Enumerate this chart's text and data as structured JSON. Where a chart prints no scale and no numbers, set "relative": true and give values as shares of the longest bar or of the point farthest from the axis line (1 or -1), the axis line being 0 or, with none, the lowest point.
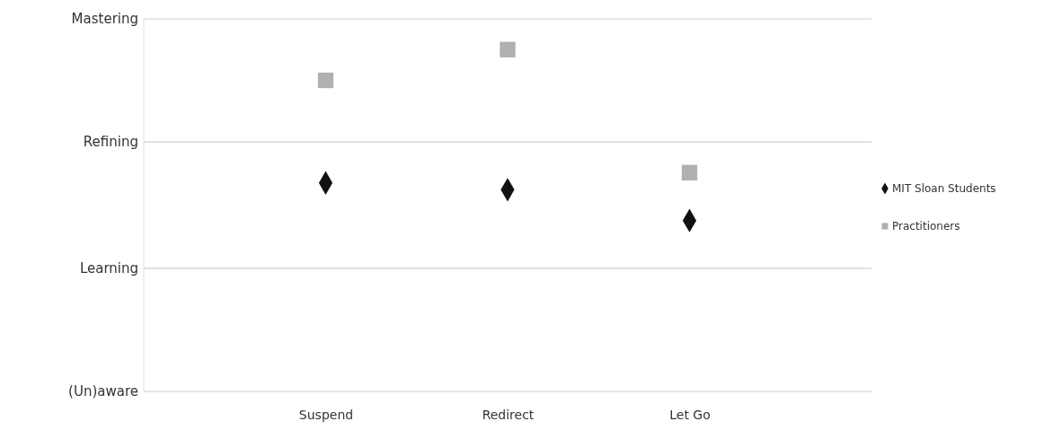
{
  "chart_data": {
    "type": "scatter",
    "relative": true,
    "categories": [
      "Suspend",
      "Redirect",
      "Let Go"
    ],
    "series": [
      {
        "name": "MIT Sloan Students",
        "color": "#111111",
        "marker": "diamond",
        "values": [
          0.61,
          0.59,
          0.5
        ]
      },
      {
        "name": "Practitioners",
        "color": "#b0b0b0",
        "marker": "square",
        "values": [
          0.91,
          1,
          0.64
        ]
      }
    ],
    "ref_lines": [
      {
        "axis": "y",
        "value": 1.09,
        "label": "Mastering",
        "color": "#cfcfcf"
      },
      {
        "axis": "y",
        "value": 0.73,
        "label": "Refining",
        "color": "#cfcfcf"
      },
      {
        "axis": "y",
        "value": 0.36,
        "label": "Learning",
        "color": "#cfcfcf"
      },
      {
        "axis": "y",
        "value": 0,
        "label": "(Un)aware",
        "color": "#cfcfcf"
      }
    ],
    "legend": "right"
  }
}
